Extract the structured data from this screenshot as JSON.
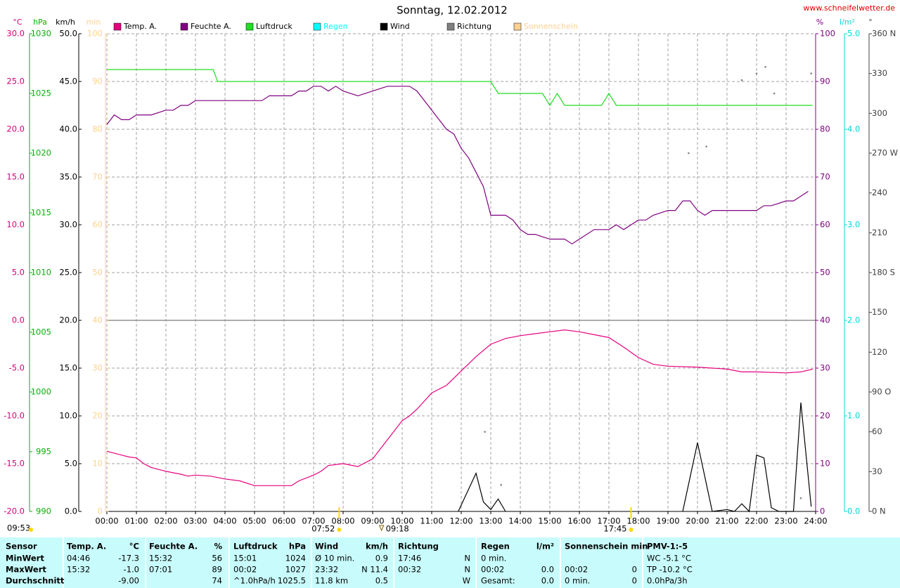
{
  "chart_data": {
    "type": "line",
    "title": "Sonntag, 12.02.2012",
    "source": "www.schneifelwetter.de",
    "update_time": "09:53",
    "sun_times": [
      "07:52",
      "09:18",
      "17:45"
    ],
    "xlim": [
      0,
      24
    ],
    "xticks": [
      {
        "value": 0,
        "label": "00:00"
      },
      {
        "value": 1,
        "label": "01:00"
      },
      {
        "value": 2,
        "label": "02:00"
      },
      {
        "value": 3,
        "label": "03:00"
      },
      {
        "value": 4,
        "label": "04:00"
      },
      {
        "value": 5,
        "label": "05:00"
      },
      {
        "value": 6,
        "label": "06:00"
      },
      {
        "value": 7,
        "label": "07:00"
      },
      {
        "value": 8,
        "label": "08:00"
      },
      {
        "value": 9,
        "label": "09:00"
      },
      {
        "value": 10,
        "label": "10:00"
      },
      {
        "value": 11,
        "label": "11:00"
      },
      {
        "value": 12,
        "label": "12:00"
      },
      {
        "value": 13,
        "label": "13:00"
      },
      {
        "value": 14,
        "label": "14:00"
      },
      {
        "value": 15,
        "label": "15:00"
      },
      {
        "value": 16,
        "label": "16:00"
      },
      {
        "value": 17,
        "label": "17:00"
      },
      {
        "value": 18,
        "label": "18:00"
      },
      {
        "value": 19,
        "label": "19:00"
      },
      {
        "value": 20,
        "label": "20:00"
      },
      {
        "value": 21,
        "label": "21:00"
      },
      {
        "value": 22,
        "label": "22:00"
      },
      {
        "value": 23,
        "label": "23:00"
      },
      {
        "value": 24,
        "label": "24:00"
      }
    ],
    "grid": true,
    "axes": [
      {
        "label": "°C",
        "side": "left",
        "color": "#d4007a",
        "lim": [
          -20,
          30
        ],
        "zero_line": true,
        "ticks": [
          {
            "value": 30,
            "label": "30.0"
          },
          {
            "value": 25,
            "label": "25.0"
          },
          {
            "value": 20,
            "label": "20.0"
          },
          {
            "value": 15,
            "label": "15.0"
          },
          {
            "value": 10,
            "label": "10.0"
          },
          {
            "value": 5,
            "label": "5.0"
          },
          {
            "value": 0,
            "label": "0.0"
          },
          {
            "value": -5,
            "label": "-5.0"
          },
          {
            "value": -10,
            "label": "-10.0"
          },
          {
            "value": -15,
            "label": "-15.0"
          },
          {
            "value": -20,
            "label": "-20.0"
          }
        ]
      },
      {
        "label": "hPa",
        "side": "left",
        "color": "#00b400",
        "lim": [
          990,
          1030
        ],
        "ticks": [
          1030,
          1025,
          1020,
          1015,
          1010,
          1005,
          1000,
          995,
          990
        ]
      },
      {
        "label": "km/h",
        "side": "left",
        "color": "#000000",
        "lim": [
          0,
          50
        ],
        "ticks": [
          {
            "value": 50,
            "label": "50.0"
          },
          {
            "value": 45,
            "label": "45.0"
          },
          {
            "value": 40,
            "label": "40.0"
          },
          {
            "value": 35,
            "label": "35.0"
          },
          {
            "value": 30,
            "label": "30.0"
          },
          {
            "value": 25,
            "label": "25.0"
          },
          {
            "value": 20,
            "label": "20.0"
          },
          {
            "value": 15,
            "label": "15.0"
          },
          {
            "value": 10,
            "label": "10.0"
          },
          {
            "value": 5,
            "label": "5.0"
          },
          {
            "value": 0,
            "label": "0.0"
          }
        ]
      },
      {
        "label": "min",
        "side": "left",
        "color": "#ffd090",
        "lim": [
          0,
          100
        ],
        "ticks": [
          100,
          90,
          80,
          70,
          60,
          50,
          40,
          30,
          20,
          10,
          0
        ]
      },
      {
        "label": "%",
        "side": "right",
        "color": "#800080",
        "lim": [
          0,
          100
        ],
        "ticks": [
          100,
          90,
          80,
          70,
          60,
          50,
          40,
          30,
          20,
          10,
          0
        ]
      },
      {
        "label": "l/m²",
        "side": "right",
        "color": "#00d8d8",
        "lim": [
          0,
          5
        ],
        "ticks": [
          {
            "value": 5,
            "label": "5.0"
          },
          {
            "value": 4,
            "label": "4.0"
          },
          {
            "value": 3,
            "label": "3.0"
          },
          {
            "value": 2,
            "label": "2.0"
          },
          {
            "value": 1,
            "label": "1.0"
          },
          {
            "value": 0,
            "label": "0.0"
          }
        ]
      },
      {
        "label": "°",
        "side": "right",
        "color": "#404040",
        "lim": [
          0,
          360
        ],
        "ticks": [
          {
            "value": 360,
            "label": "360 N"
          },
          330,
          300,
          {
            "value": 270,
            "label": "270 W"
          },
          240,
          210,
          {
            "value": 180,
            "label": "180 S"
          },
          150,
          120,
          {
            "value": 90,
            "label": "90  O"
          },
          60,
          30,
          {
            "value": 0,
            "label": "0  N"
          }
        ]
      }
    ],
    "series": [
      {
        "name": "Temp. A.",
        "color": "#e6007e",
        "axis": "°C",
        "x": [
          0,
          0.5,
          0.75,
          1,
          1.25,
          1.5,
          2,
          2.5,
          2.75,
          3,
          3.5,
          4,
          4.5,
          5,
          5.5,
          6,
          6.25,
          6.5,
          7,
          7.25,
          7.5,
          8,
          8.5,
          9,
          9.5,
          10,
          10.25,
          10.5,
          11,
          11.5,
          12,
          12.5,
          13,
          13.5,
          14,
          14.5,
          15,
          15.5,
          16,
          16.5,
          17,
          17.5,
          18,
          18.5,
          19,
          20,
          20.5,
          21,
          21.5,
          22,
          23,
          23.5,
          23.9
        ],
        "values": [
          -13.7,
          -14.1,
          -14.3,
          -14.4,
          -15.0,
          -15.4,
          -15.8,
          -16.1,
          -16.3,
          -16.2,
          -16.3,
          -16.6,
          -16.8,
          -17.3,
          -17.3,
          -17.3,
          -17.3,
          -16.8,
          -16.2,
          -15.8,
          -15.2,
          -15.0,
          -15.3,
          -14.5,
          -12.5,
          -10.5,
          -10.0,
          -9.3,
          -7.6,
          -6.8,
          -5.3,
          -3.8,
          -2.5,
          -1.9,
          -1.6,
          -1.4,
          -1.2,
          -1.0,
          -1.2,
          -1.5,
          -1.8,
          -2.8,
          -3.9,
          -4.6,
          -4.8,
          -4.9,
          -5.0,
          -5.1,
          -5.4,
          -5.4,
          -5.5,
          -5.4,
          -5.1
        ]
      },
      {
        "name": "Feuchte A.",
        "color": "#800080",
        "axis": "%",
        "x": [
          0,
          0.25,
          0.5,
          0.75,
          1,
          1.5,
          2,
          2.25,
          2.5,
          2.75,
          3,
          3.5,
          4,
          4.5,
          5,
          5.25,
          5.5,
          6,
          6.25,
          6.5,
          6.75,
          7,
          7.25,
          7.5,
          7.75,
          8,
          8.5,
          9,
          9.5,
          10,
          10.25,
          10.5,
          11,
          11.25,
          11.5,
          11.75,
          12,
          12.25,
          12.5,
          12.75,
          13,
          13.5,
          13.75,
          14,
          14.25,
          14.5,
          15,
          15.25,
          15.5,
          15.75,
          16,
          16.5,
          17,
          17.25,
          17.5,
          18,
          18.25,
          18.5,
          19,
          19.25,
          19.5,
          19.75,
          20,
          20.25,
          20.5,
          21,
          21.5,
          22,
          22.25,
          22.5,
          23,
          23.25,
          23.5,
          23.75
        ],
        "values": [
          81,
          83,
          82,
          82,
          83,
          83,
          84,
          84,
          85,
          85,
          86,
          86,
          86,
          86,
          86,
          86,
          87,
          87,
          87,
          88,
          88,
          89,
          89,
          88,
          89,
          88,
          87,
          88,
          89,
          89,
          89,
          88,
          84,
          82,
          80,
          79,
          76,
          74,
          71,
          68,
          62,
          62,
          61,
          59,
          58,
          58,
          57,
          57,
          57,
          56,
          57,
          59,
          59,
          60,
          59,
          61,
          61,
          62,
          63,
          63,
          65,
          65,
          63,
          62,
          63,
          63,
          63,
          63,
          64,
          64,
          65,
          65,
          66,
          67
        ]
      },
      {
        "name": "Luftdruck",
        "color": "#22dd22",
        "axis": "hPa",
        "x": [
          0,
          3.6,
          3.75,
          13.0,
          13.25,
          14.75,
          15.0,
          15.25,
          15.5,
          16.75,
          17.0,
          17.25,
          23.9
        ],
        "values": [
          1027,
          1027,
          1026,
          1026,
          1025,
          1025,
          1024,
          1025,
          1024,
          1024,
          1025,
          1024,
          1024
        ]
      },
      {
        "name": "Regen",
        "color": "#00ffff",
        "axis": "l/m²",
        "x": [],
        "values": []
      },
      {
        "name": "Wind",
        "color": "#000000",
        "axis": "km/h",
        "x": [
          11.9,
          12.5,
          12.75,
          13,
          13.25,
          13.5,
          13.75,
          19.5,
          20,
          20.5,
          21,
          21.25,
          21.5,
          21.75,
          22,
          22.25,
          22.5,
          22.75,
          23.25,
          23.5,
          23.85
        ],
        "values": [
          0,
          4.0,
          1.0,
          0.2,
          1.3,
          0,
          null,
          0,
          7.2,
          0,
          0.2,
          0,
          0.8,
          0,
          5.9,
          5.6,
          0.4,
          0,
          0,
          11.4,
          0.5
        ]
      },
      {
        "name": "Richtung",
        "color": "#808080",
        "axis": "°",
        "style": "dots",
        "x": [
          12.8,
          13.35,
          19.7,
          20.3,
          21.5,
          22.0,
          22.3,
          22.6,
          23.5,
          23.85
        ],
        "values": [
          60,
          20,
          270,
          275,
          325,
          330,
          335,
          315,
          10,
          330
        ]
      },
      {
        "name": "Sonnenschein",
        "color": "#ffd090",
        "axis": "min",
        "x": [],
        "values": []
      }
    ]
  },
  "table": {
    "columns": [
      {
        "label": "Sensor"
      },
      {
        "label": "Temp. A.",
        "unit": "°C"
      },
      {
        "label": "Feuchte A.",
        "unit": "%"
      },
      {
        "label": "Luftdruck",
        "unit": "hPa"
      },
      {
        "label": "Wind",
        "unit": "km/h"
      },
      {
        "label": "Richtung"
      },
      {
        "label": "Regen",
        "unit": "l/m²"
      },
      {
        "label": "Sonnenschein min"
      },
      {
        "label": "PMV-1:-5"
      }
    ],
    "rows": [
      {
        "label": "MinWert",
        "cells": [
          {
            "l": "04:46",
            "r": "-17.3"
          },
          {
            "l": "15:32",
            "r": "56"
          },
          {
            "l": "15:01",
            "r": "1024"
          },
          {
            "l": "Ø 10 min.",
            "r": "0.9"
          },
          {
            "l": "17:46",
            "r": "N"
          },
          {
            "l": "0 min."
          },
          {},
          {
            "l": "WC -5.1 °C"
          }
        ]
      },
      {
        "label": "MaxWert",
        "cells": [
          {
            "l": "15:32",
            "r": "-1.0"
          },
          {
            "l": "07:01",
            "r": "89"
          },
          {
            "l": "00:02",
            "r": "1027"
          },
          {
            "l": "23:32",
            "r": "N 11.4"
          },
          {
            "l": "00:32",
            "r": "N"
          },
          {
            "l": "00:02",
            "r": "0.0"
          },
          {
            "l": "00:02",
            "r": "0"
          },
          {
            "l": "TP -10.2 °C"
          }
        ]
      },
      {
        "label": "Durchschnitt",
        "cells": [
          {
            "r": "-9.00"
          },
          {
            "r": "74"
          },
          {
            "l": "^1.0hPa/h",
            "r": "1025.5"
          },
          {
            "l": "11.8 km",
            "r": "0.5"
          },
          {
            "r": "W"
          },
          {
            "l": "Gesamt:",
            "r": "0.0"
          },
          {
            "l": "0 min.",
            "r": "0"
          },
          {
            "l": "0.0hPa/3h"
          }
        ]
      }
    ]
  }
}
